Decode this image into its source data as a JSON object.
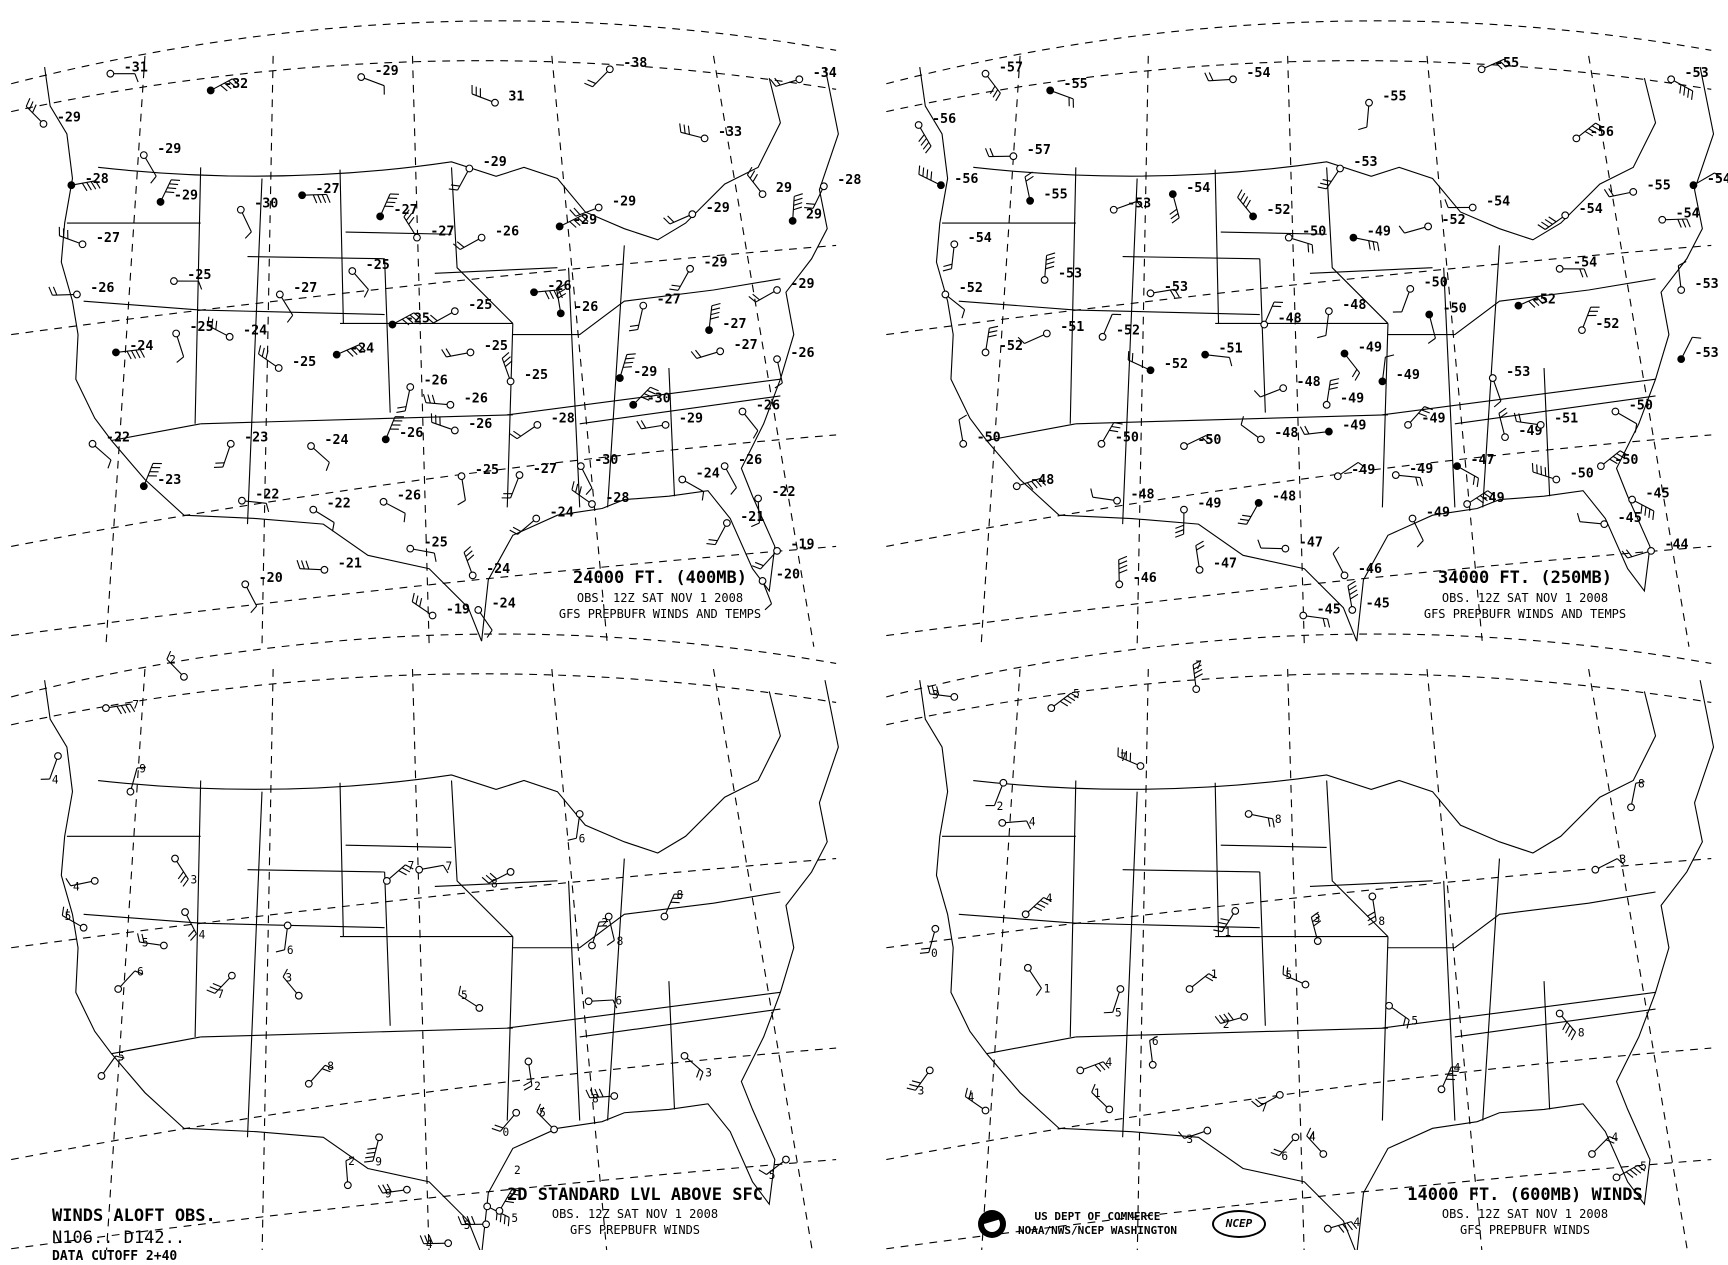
{
  "panels": [
    {
      "title": "24000 FT. (400MB)",
      "obs": "OBS.  12Z SAT NOV  1 2008",
      "source": "GFS PREPBUFR WINDS AND TEMPS",
      "temps": [
        "-31",
        "-32",
        "-29",
        "31",
        "-38",
        "-34",
        "-29",
        "-29",
        "-29",
        "-33",
        "-28",
        "-29",
        "-30",
        "-27",
        "-27",
        "-29",
        "-29",
        "-29",
        "29",
        "-28",
        "29",
        "-27",
        "-27",
        "-26",
        "-25",
        "-29",
        "-26",
        "-25",
        "-27",
        "-25",
        "-26",
        "-26",
        "-27",
        "-29",
        "-25",
        "-24",
        "-24",
        "-25",
        "-25",
        "-27",
        "-25",
        "-24",
        "-27",
        "-26",
        "-25",
        "-29",
        "-26",
        "-26",
        "-26",
        "-22",
        "-23",
        "-24",
        "-26",
        "-26",
        "-28",
        "-30",
        "-29",
        "-25",
        "-27",
        "-30",
        "-26",
        "-24",
        "-23",
        "-22",
        "-22",
        "-26",
        "-28",
        "-22",
        "-24",
        "-21",
        "-19",
        "-21",
        "-20",
        "-25",
        "-20",
        "-19",
        "-24",
        "-24"
      ]
    },
    {
      "title": "34000 FT. (250MB)",
      "obs": "OBS.  12Z SAT NOV  1 2008",
      "source": "GFS PREPBUFR WINDS AND TEMPS",
      "temps": [
        "-57",
        "-55",
        "-54",
        "-55",
        "-55",
        "-53",
        "-56",
        "-57",
        "-56",
        "-53",
        "-56",
        "-55",
        "-53",
        "-54",
        "-52",
        "-50",
        "-49",
        "-54",
        "-52",
        "-55",
        "-54",
        "-54",
        "-54",
        "-54",
        "-53",
        "-53",
        "-52",
        "-54",
        "-53",
        "-50",
        "-50",
        "-52",
        "-48",
        "-51",
        "-52",
        "-52",
        "-51",
        "-52",
        "-48",
        "-49",
        "-52",
        "-53",
        "-53",
        "-48",
        "-49",
        "-49",
        "-49",
        "-50",
        "-50",
        "-50",
        "-50",
        "-48",
        "-49",
        "-49",
        "-49",
        "-47",
        "-49",
        "-51",
        "-50",
        "-48",
        "-48",
        "-49",
        "-48",
        "-49",
        "-50",
        "-45",
        "-45",
        "-49",
        "-44",
        "-47",
        "-46",
        "-47",
        "-46",
        "-45",
        "-45"
      ]
    },
    {
      "title": "2D STANDARD LVL ABOVE SFC",
      "obs": "OBS.  12Z SAT NOV  1 2008",
      "source": "GFS PREPBUFR WINDS",
      "speeds": [
        "7",
        "2",
        "4",
        "9",
        "3",
        "4",
        "5",
        "4",
        "5",
        "7",
        "6",
        "3",
        "6",
        "7",
        "7",
        "8",
        "6",
        "8",
        "8",
        "2",
        "5",
        "2",
        "6",
        "3",
        "8",
        "0",
        "5",
        "8",
        "9",
        "2",
        "9",
        "4",
        "5",
        "5",
        "2",
        "5",
        "5"
      ]
    },
    {
      "title": "14000 FT. (600MB) WINDS",
      "obs": "OBS.  12Z SAT NOV  1 2008",
      "source": "GFS PREPBUFR WINDS",
      "speeds": [
        "3",
        "5",
        "7",
        "7",
        "2",
        "4",
        "8",
        "0",
        "4",
        "1",
        "5",
        "1",
        "2",
        "5",
        "3",
        "8",
        "1",
        "6",
        "4",
        "3",
        "1",
        "7",
        "6",
        "4",
        "4",
        "5",
        "8",
        "4",
        "5",
        "4",
        "3",
        "8",
        "3",
        "4"
      ]
    }
  ],
  "footer": {
    "line1": "WINDS ALOFT OBS.",
    "line2": "N106..  D142..",
    "line3": "DATA CUTOFF 2+40",
    "agency1": "US DEPT OF COMMERCE",
    "agency2": "NOAA/NWS/NCEP WASHINGTON",
    "ncep_logo": "NCEP",
    "noaa_logo": "NOAA"
  },
  "colors": {
    "ink": "#000000",
    "background": "#ffffff"
  }
}
